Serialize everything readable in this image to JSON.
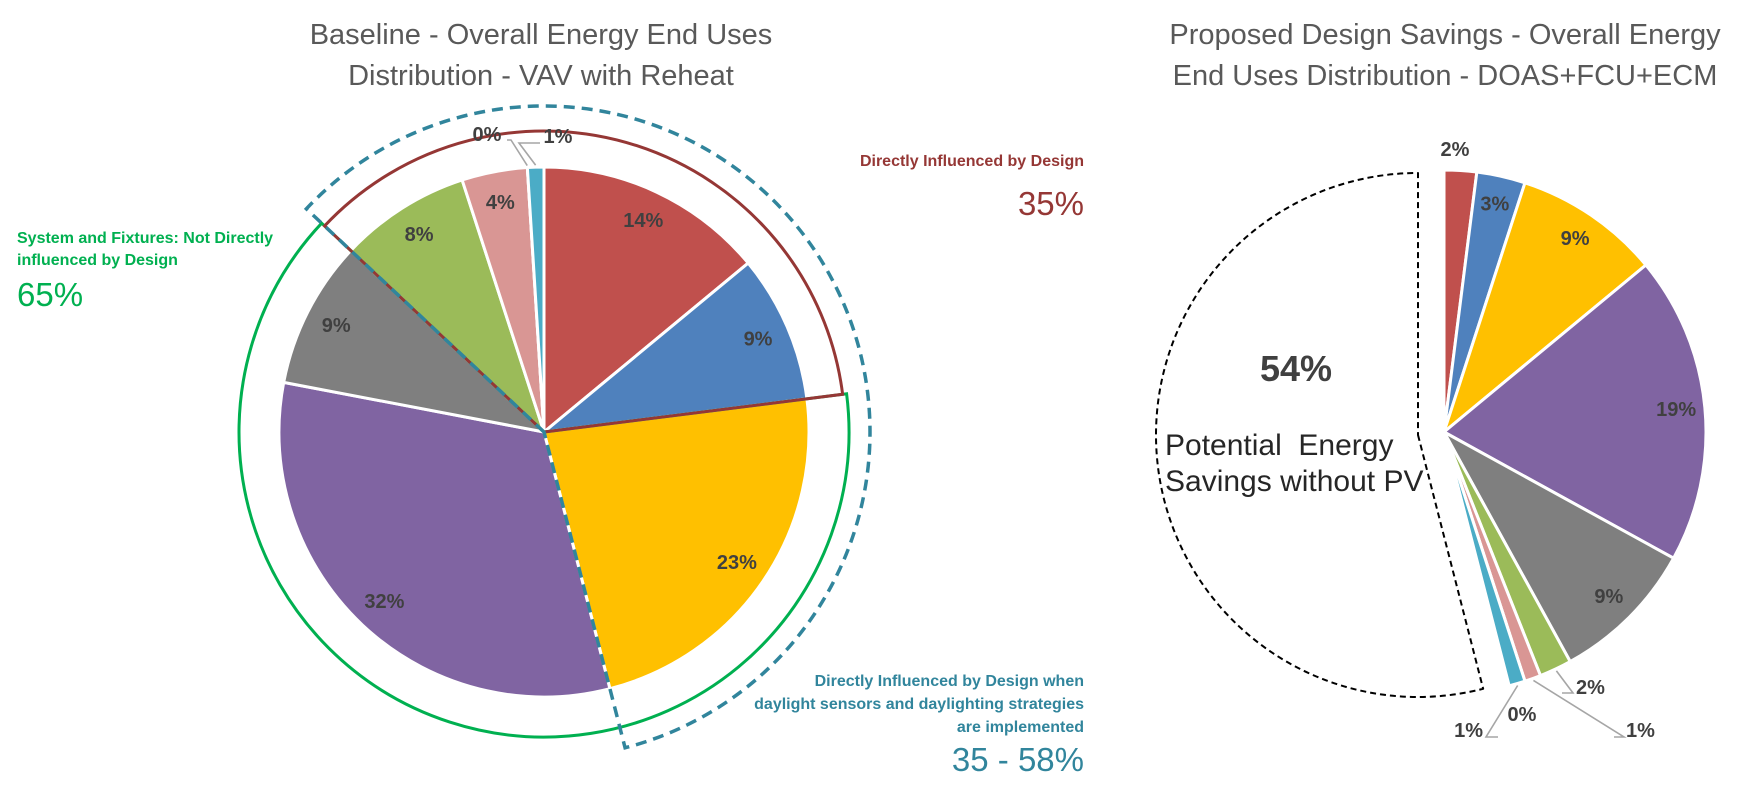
{
  "chart_data": [
    {
      "type": "pie",
      "title": "Baseline - Overall Energy End Uses Distribution - VAV with Reheat",
      "title_lines": [
        "Baseline - Overall Energy End Uses",
        "Distribution - VAV with Reheat"
      ],
      "label_color": "#404040",
      "slices": [
        {
          "label": "14%",
          "value": 14,
          "color": "#C0504D"
        },
        {
          "label": "9%",
          "value": 9,
          "color": "#4F81BD"
        },
        {
          "label": "23%",
          "value": 23,
          "color": "#FFC000"
        },
        {
          "label": "32%",
          "value": 32,
          "color": "#8064A2"
        },
        {
          "label": "9%",
          "value": 9,
          "color": "#7F7F7F"
        },
        {
          "label": "8%",
          "value": 8,
          "color": "#9BBB59"
        },
        {
          "label": "4%",
          "value": 4,
          "color": "#D99694"
        },
        {
          "label": "0%",
          "value": 0,
          "color": "#FFFFFF"
        },
        {
          "label": "1%",
          "value": 1,
          "color": "#4BACC6"
        }
      ],
      "annotations": [
        {
          "lines": [
            "Directly Influenced by Design"
          ],
          "value": "35%",
          "color": "#953735",
          "outline": "solid",
          "slice_range": [
            5,
            1
          ]
        },
        {
          "lines": [
            "System and Fixtures: Not Directly",
            "influenced by Design"
          ],
          "value": "65%",
          "color": "#00B050",
          "outline": "solid",
          "slice_range": [
            2,
            4
          ]
        },
        {
          "lines": [
            "Directly Influenced by Design when",
            "daylight sensors and daylighting strategies",
            "are implemented"
          ],
          "value": "35 - 58%",
          "color": "#31859C",
          "outline": "dashed",
          "slice_range": [
            5,
            2
          ]
        }
      ]
    },
    {
      "type": "pie",
      "title": "Proposed Design Savings - Overall Energy End Uses Distribution - DOAS+FCU+ECM",
      "title_lines": [
        "Proposed Design Savings - Overall Energy",
        "End Uses Distribution - DOAS+FCU+ECM"
      ],
      "label_color": "#404040",
      "slices": [
        {
          "label": "2%",
          "value": 2,
          "color": "#C0504D"
        },
        {
          "label": "3%",
          "value": 3,
          "color": "#4F81BD"
        },
        {
          "label": "9%",
          "value": 9,
          "color": "#FFC000"
        },
        {
          "label": "19%",
          "value": 19,
          "color": "#8064A2"
        },
        {
          "label": "9%",
          "value": 9,
          "color": "#7F7F7F"
        },
        {
          "label": "2%",
          "value": 2,
          "color": "#9BBB59"
        },
        {
          "label": "1%",
          "value": 1,
          "color": "#D99694"
        },
        {
          "label": "0%",
          "value": 0,
          "color": "#FFFFFF"
        },
        {
          "label": "1%",
          "value": 1,
          "color": "#4BACC6"
        },
        {
          "label": "54%",
          "value": 54,
          "color": "#FFFFFF",
          "outline": "dashed",
          "outline_color": "#000000",
          "exploded": true
        }
      ],
      "savings": {
        "value": "54%",
        "lines": [
          "Potential  Energy",
          "Savings without PV"
        ]
      }
    }
  ]
}
